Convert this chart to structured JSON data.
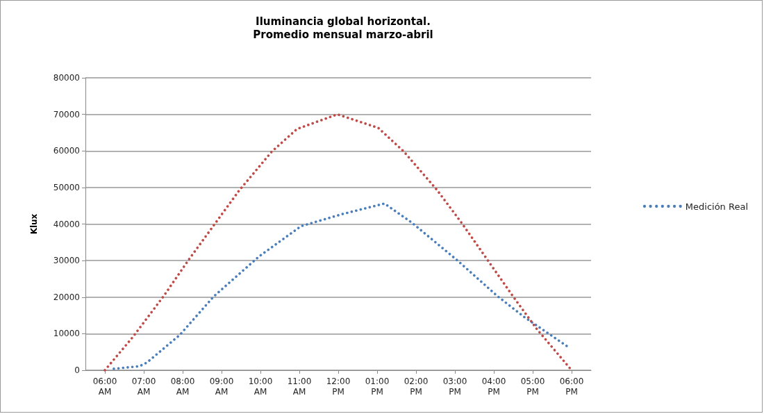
{
  "chart_data": {
    "type": "line",
    "title": "Iluminancia global horizontal.\nPromedio mensual marzo-abril",
    "ylabel": "Klux",
    "series": [
      {
        "name": "Medición Real",
        "color": "#4a7ebb",
        "x": [
          6.23,
          6.89,
          7.08,
          7.93,
          8.8,
          9.96,
          11.04,
          12.1,
          13.19,
          13.89,
          15.08,
          16.09,
          16.79,
          17.88
        ],
        "values": [
          400,
          1100,
          2100,
          9700,
          20200,
          31100,
          39400,
          42700,
          45600,
          40400,
          29900,
          20300,
          14500,
          6600
        ]
      },
      {
        "color": "#be4b48",
        "x": [
          6.0,
          6.72,
          7.52,
          8.14,
          8.79,
          9.44,
          10.29,
          10.94,
          11.98,
          13.03,
          13.68,
          14.54,
          15.2,
          15.83,
          16.46,
          17.11,
          18.0
        ],
        "values": [
          0,
          9100,
          20400,
          30000,
          39500,
          49000,
          59800,
          66000,
          70000,
          66300,
          59900,
          49300,
          39900,
          30300,
          20700,
          11200,
          0
        ]
      }
    ],
    "xlim": [
      5.5,
      18.5
    ],
    "xticks": [
      {
        "value": 6,
        "label": "06:00 AM"
      },
      {
        "value": 7,
        "label": "07:00 AM"
      },
      {
        "value": 8,
        "label": "08:00 AM"
      },
      {
        "value": 9,
        "label": "09:00 AM"
      },
      {
        "value": 10,
        "label": "10:00 AM"
      },
      {
        "value": 11,
        "label": "11:00 AM"
      },
      {
        "value": 12,
        "label": "12:00 PM"
      },
      {
        "value": 13,
        "label": "01:00 PM"
      },
      {
        "value": 14,
        "label": "02:00 PM"
      },
      {
        "value": 15,
        "label": "03:00 PM"
      },
      {
        "value": 16,
        "label": "04:00 PM"
      },
      {
        "value": 17,
        "label": "05:00 PM"
      },
      {
        "value": 18,
        "label": "06:00 PM"
      }
    ],
    "ylim": [
      0,
      80000
    ],
    "yticks": [
      0,
      10000,
      20000,
      30000,
      40000,
      50000,
      60000,
      70000,
      80000
    ],
    "grid": "y",
    "legend": "right",
    "marker": "none",
    "line_style": "dotted"
  }
}
